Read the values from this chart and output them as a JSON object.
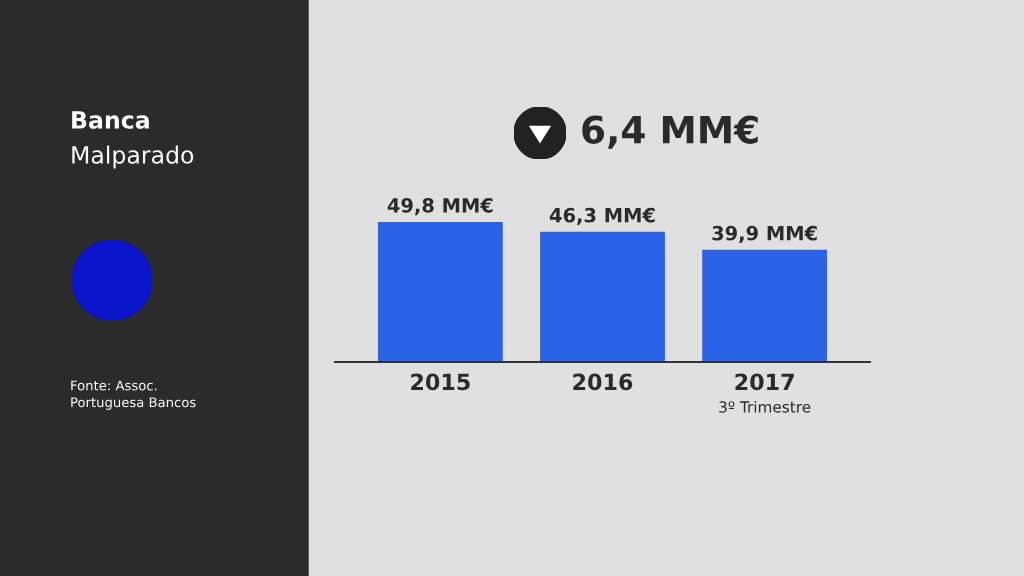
{
  "chart_data": {
    "type": "bar",
    "title": "Banca",
    "subtitle": "Malparado",
    "categories": [
      "2015",
      "2016",
      "2017"
    ],
    "values": [
      49.8,
      46.3,
      39.9
    ],
    "color": "#2a62e8",
    "value_labels": [
      "49,8 MM€",
      "46,3 MM€",
      "39,9 MM€"
    ],
    "grid": false,
    "legend": false,
    "annotations": [
      "3º Trimestre",
      "6,4 MM€",
      "Fonte: Assoc.\nPortuguesa Bancos"
    ]
  }
}
